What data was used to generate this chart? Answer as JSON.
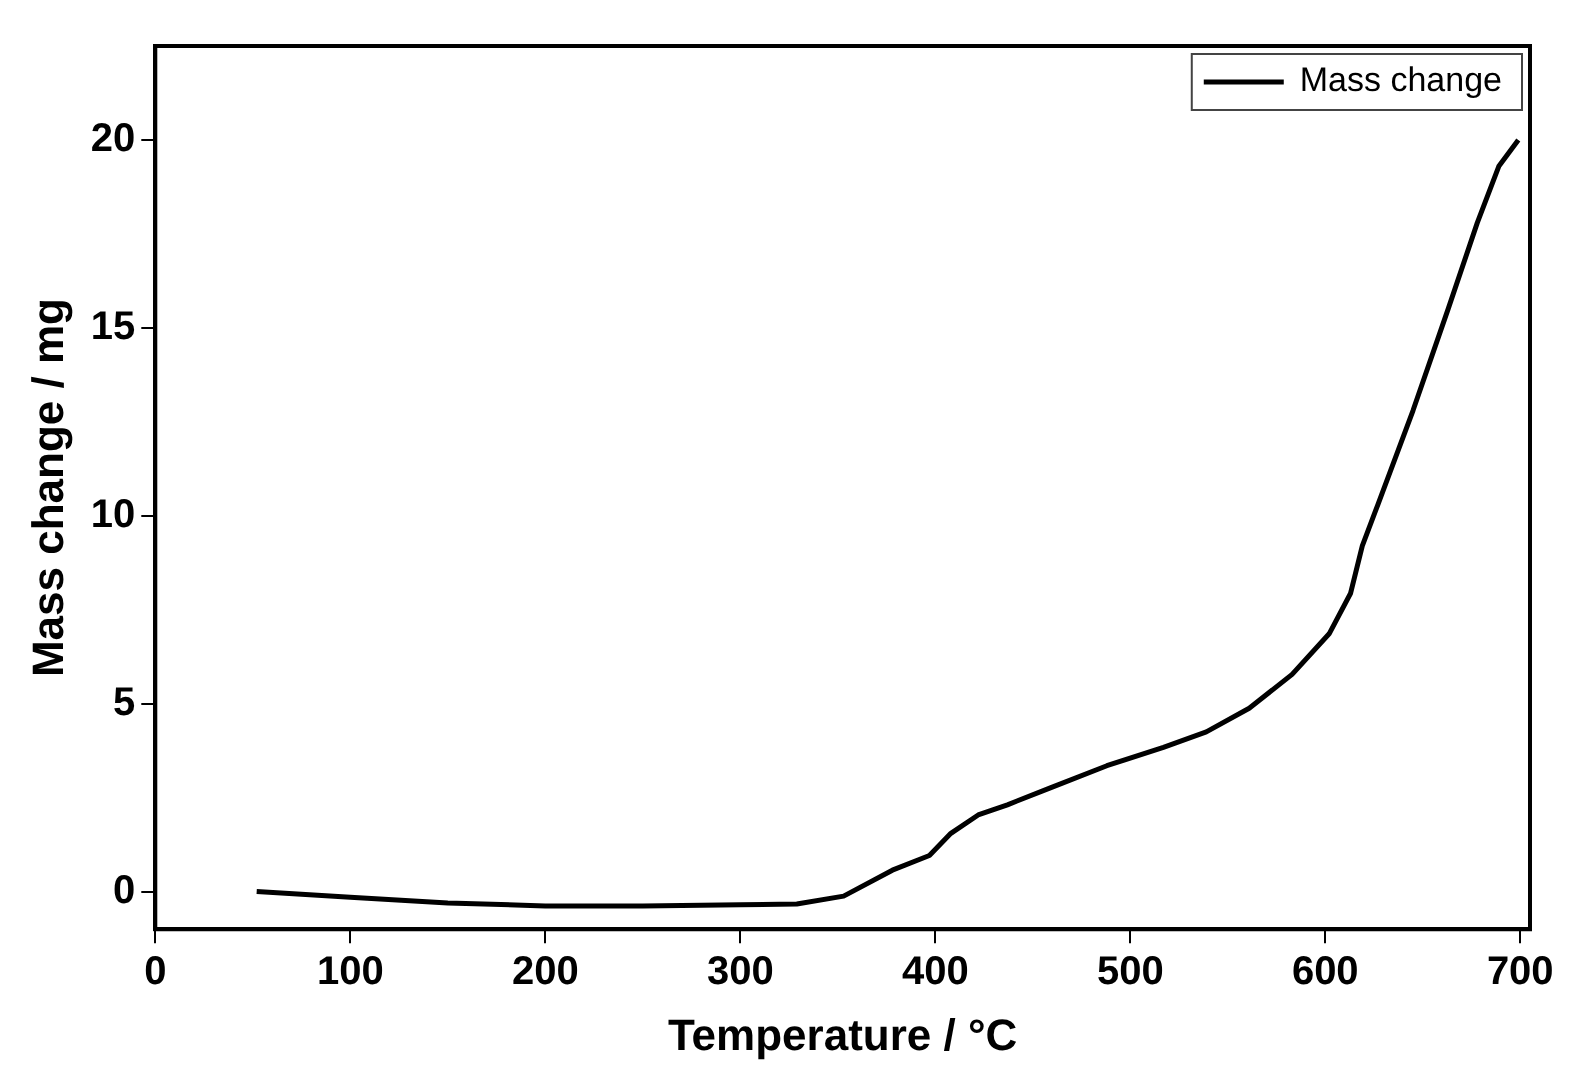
{
  "chart_data": {
    "type": "line",
    "xlabel": "Temperature / °C",
    "ylabel": "Mass change / mg",
    "xlim": [
      0,
      705
    ],
    "ylim": [
      -1,
      22.5
    ],
    "xticks": [
      0,
      100,
      200,
      300,
      400,
      500,
      600,
      700
    ],
    "yticks": [
      0,
      5,
      10,
      15,
      20
    ],
    "legend": "top right",
    "grid": false,
    "marker": "none",
    "line_style": "solid",
    "series": [
      {
        "name": "Mass change",
        "color": "#000000",
        "x": [
          52,
          100,
          150,
          200,
          250,
          300,
          329,
          353,
          378,
          397,
          408,
          422,
          437,
          459,
          488,
          517,
          539,
          561,
          583,
          602,
          613,
          619,
          627,
          645,
          663,
          678,
          689,
          699
        ],
        "values": [
          0,
          -0.15,
          -0.3,
          -0.38,
          -0.38,
          -0.35,
          -0.33,
          -0.12,
          0.57,
          0.96,
          1.55,
          2.04,
          2.31,
          2.76,
          3.35,
          3.84,
          4.25,
          4.88,
          5.78,
          6.86,
          7.94,
          9.2,
          10.3,
          12.8,
          15.5,
          17.8,
          19.3,
          20.0
        ]
      }
    ]
  }
}
